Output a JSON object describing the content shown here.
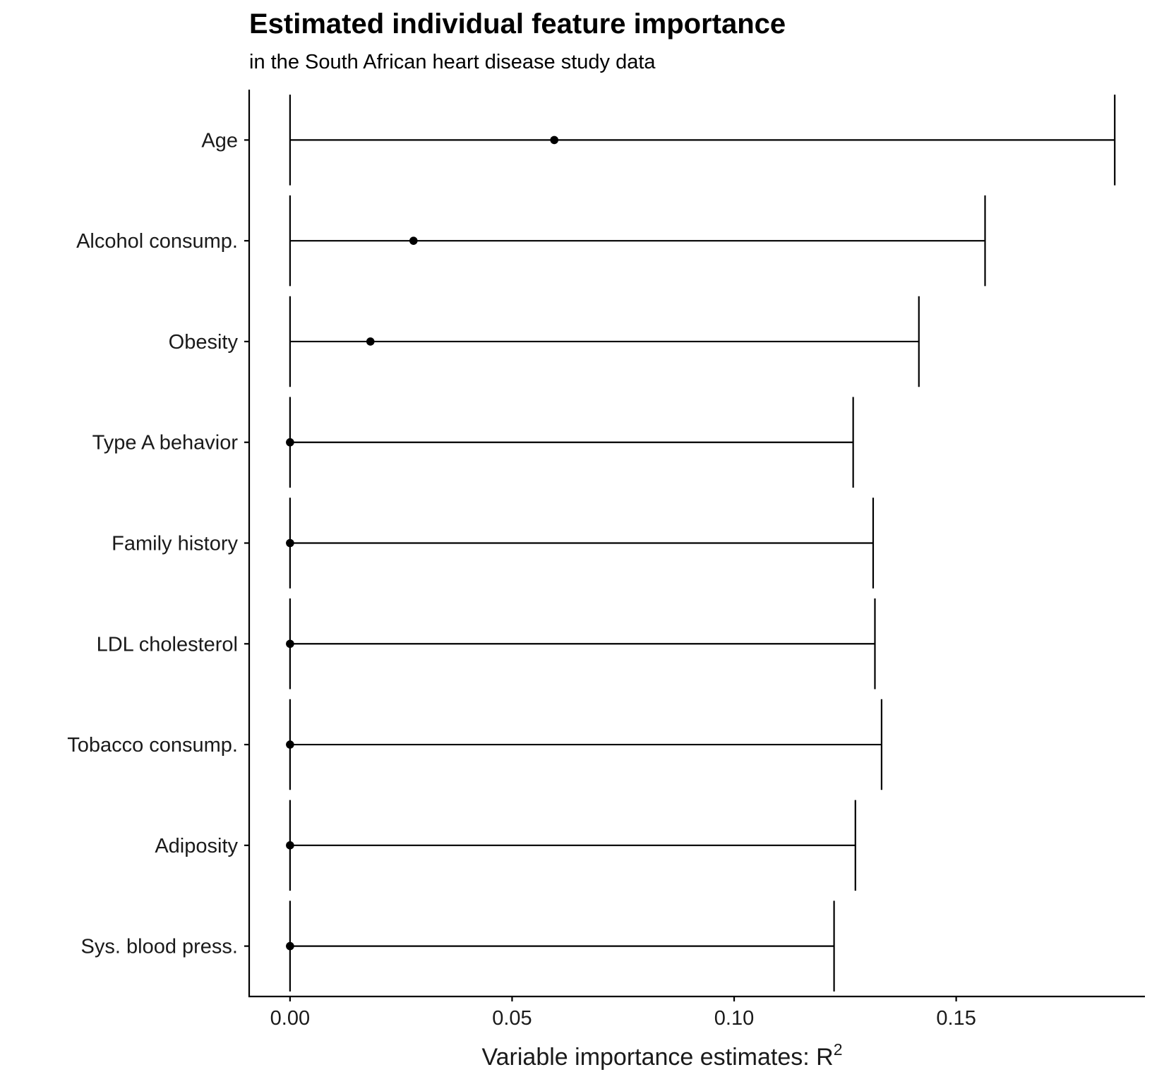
{
  "chart_data": {
    "type": "errorbar-point",
    "title": "Estimated individual feature importance",
    "subtitle": "in the South African heart disease study data",
    "xlabel": "Variable importance estimates: R",
    "xlabel_superscript": "2",
    "ylabel": "",
    "xlim": [
      -0.0092,
      0.1925
    ],
    "x_ticks": [
      0.0,
      0.05,
      0.1,
      0.15
    ],
    "x_tick_labels": [
      "0.00",
      "0.05",
      "0.10",
      "0.15"
    ],
    "grid": false,
    "legend": "none",
    "categories": [
      "Age",
      "Alcohol consump.",
      "Obesity",
      "Type A behavior",
      "Family history",
      "LDL cholesterol",
      "Tobacco consump.",
      "Adiposity",
      "Sys. blood press."
    ],
    "estimates": [
      0.0595,
      0.0278,
      0.0181,
      0.0,
      0.0,
      0.0,
      0.0,
      0.0,
      0.0
    ],
    "ci_lower": [
      0.0,
      0.0,
      0.0,
      0.0,
      0.0,
      0.0,
      0.0,
      0.0,
      0.0
    ],
    "ci_upper": [
      0.1857,
      0.1565,
      0.1416,
      0.1268,
      0.1313,
      0.1317,
      0.1332,
      0.1273,
      0.1225
    ],
    "colors": {
      "point": "#000000",
      "line": "#000000",
      "axis": "#000000",
      "text": "#1a1a1a"
    }
  }
}
